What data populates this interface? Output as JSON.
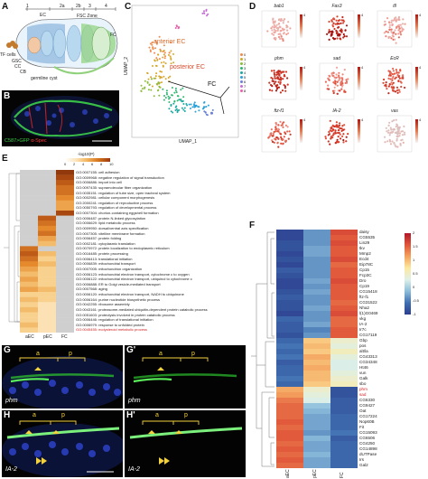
{
  "panels": {
    "A": {
      "label": "A",
      "stage_labels": [
        "1",
        "2a",
        "2b",
        "3",
        "4"
      ],
      "region_labels": {
        "ec": "EC",
        "fsc_zone": "FSC Zone",
        "fc": "FC",
        "tf_cells": "TF cells",
        "gsc": "GSC",
        "cc": "CC",
        "cb": "CB",
        "germline_cyst": "germline cyst"
      },
      "colors": {
        "tf": "#c47a2c",
        "ec": "#6fa4d6",
        "germline": "#b8d8ef",
        "fc": "#8fd17a"
      }
    },
    "B": {
      "label": "B",
      "caption_green": "C587>GFP",
      "caption_red": "α-Spec"
    },
    "C": {
      "label": "C",
      "cluster_labels": {
        "anterior": "anterior EC",
        "posterior": "posterior EC",
        "fc": "FC"
      },
      "legend": [
        "0",
        "1",
        "2",
        "3",
        "4",
        "5",
        "6",
        "7",
        "8"
      ],
      "legend_colors": [
        "#f08a4b",
        "#d4a72c",
        "#8bbd3a",
        "#2fb56f",
        "#1aa8a0",
        "#2aa2d9",
        "#6a7fd8",
        "#c46bd6",
        "#ec5fa8"
      ],
      "axis_x": "UMAP_1",
      "axis_y": "UMAP_2"
    },
    "D": {
      "label": "D",
      "genes": [
        "bab1",
        "Fas3",
        "tll",
        "phm",
        "sad",
        "EcR",
        "ftz-f1",
        "IA-2",
        "vas"
      ],
      "axis_x": "UMAP_1",
      "axis_y": "UMAP_2",
      "scale_max_label": "4"
    },
    "E": {
      "label": "E",
      "colorbar_label": "-log10(P)",
      "colorbar_ticks": [
        "0",
        "2",
        "4",
        "6",
        "8",
        "10"
      ],
      "columns": [
        "aEC",
        "pEC",
        "FC"
      ],
      "terms": [
        "GO:0007155: cell adhesion",
        "GO:0009968: negative regulation of signal transduction",
        "GO:0006886: import into cell",
        "GO:0097435: supramolecular fiber organization",
        "GO:0035151: regulation of tube size, open tracheal system",
        "GO:0002981: cellular component morphogenesis",
        "GO:2000241: regulation of reproductive process",
        "GO:0050793: regulation of developmental process",
        "GO:0007304: chorion-containing eggshell formation",
        "GO:0006487: protein N-linked glycosylation",
        "GO:0006629: lipid metabolic process",
        "GO:0009950: dorsal/ventral axis specification",
        "GO:0007305: vitelline membrane formation",
        "GO:0006457: protein folding",
        "GO:0002181: cytoplasmic translation",
        "GO:0070972: protein localization to endoplasmic reticulum",
        "GO:0016485: protein processing",
        "GO:0006413: translational initiation",
        "GO:0006839: mitochondrial transport",
        "GO:0007005: mitochondrion organization",
        "GO:0006123: mitochondrial electron transport, cytochrome c to oxygen",
        "GO:0006122: mitochondrial electron transport, ubiquinol to cytochrome c",
        "GO:0006888: ER to Golgi vesicle-mediated transport",
        "GO:0007568: aging",
        "GO:0006120: mitochondrial electron transport, NADH to ubiquinone",
        "GO:0006164: purine nucleotide biosynthetic process",
        "GO:0042255: ribosome assembly",
        "GO:0043161: proteasome-mediated ubiquitin-dependent protein catabolic process",
        "GO:0051603: proteolysis involved in protein catabolic process",
        "GO:0006446: regulation of translational initiation",
        "GO:0006979: response to unfolded protein",
        "GO:0045455: ecdysteroid metabolic process"
      ],
      "matrix": [
        [
          0,
          0,
          9
        ],
        [
          0,
          0,
          8
        ],
        [
          0,
          0,
          7
        ],
        [
          0,
          0,
          6
        ],
        [
          0,
          0,
          6
        ],
        [
          0,
          0,
          5
        ],
        [
          0,
          0,
          4
        ],
        [
          0,
          0,
          4
        ],
        [
          0,
          0,
          8
        ],
        [
          0,
          7,
          0
        ],
        [
          0,
          6,
          0
        ],
        [
          0,
          5,
          0
        ],
        [
          0,
          6,
          0
        ],
        [
          0,
          4,
          0
        ],
        [
          0,
          3,
          0
        ],
        [
          6,
          0,
          0
        ],
        [
          7,
          3,
          0
        ],
        [
          6,
          2,
          0
        ],
        [
          5,
          3,
          0
        ],
        [
          4,
          2,
          0
        ],
        [
          3,
          2,
          0
        ],
        [
          4,
          2,
          0
        ],
        [
          3,
          2,
          0
        ],
        [
          4,
          3,
          0
        ],
        [
          2,
          2,
          0
        ],
        [
          3,
          2,
          0
        ],
        [
          2,
          1,
          0
        ],
        [
          3,
          1,
          0
        ],
        [
          2,
          1,
          0
        ],
        [
          2,
          1,
          0
        ],
        [
          3,
          1,
          0
        ],
        [
          2,
          1,
          0
        ]
      ],
      "highlight_color": "#d42020"
    },
    "F": {
      "label": "F",
      "columns": [
        "aEC",
        "pEC",
        "FC"
      ],
      "scale_ticks": [
        "2",
        "1.5",
        "1",
        "0.5",
        "0",
        "-0.5",
        "-1"
      ],
      "genes": [
        "daisy",
        "CG5535",
        "Lin29",
        "tkv",
        "Mmp2",
        "Ecd4",
        "Eip78C",
        "Cp15",
        "Fcp3C",
        "Dro",
        "Cp19",
        "CG15418",
        "ftz-f1",
        "CG31522",
        "Nha2",
        "l(1)G0469",
        "vkg",
        "IA-2",
        "Ir7c",
        "CG17119",
        "Gbp",
        "pos",
        "alt/la",
        "CG43313",
        "CG34348",
        "Ht46",
        "vun",
        "Galk",
        "sbo",
        "phm",
        "sad",
        "CG6330",
        "CG9427",
        "Oat",
        "CG17224",
        "Nop60B",
        "Fit",
        "CG15093",
        "CG6506",
        "CG4250",
        "CG14898",
        "dUTPase",
        "Irs",
        "Gal2"
      ],
      "red_genes": [
        "phm",
        "sad"
      ],
      "values": [
        [
          -1.2,
          -0.6,
          1.6
        ],
        [
          -1.2,
          -0.6,
          1.5
        ],
        [
          -1.1,
          -0.6,
          1.6
        ],
        [
          -1.1,
          -0.5,
          1.5
        ],
        [
          -1.2,
          -0.5,
          1.5
        ],
        [
          -1.1,
          -0.6,
          1.6
        ],
        [
          -1.2,
          -0.6,
          1.4
        ],
        [
          -1.0,
          -0.6,
          1.5
        ],
        [
          -1.1,
          -0.6,
          1.5
        ],
        [
          -1.2,
          -0.5,
          1.6
        ],
        [
          -1.2,
          -0.6,
          1.5
        ],
        [
          -1.1,
          -0.5,
          1.5
        ],
        [
          -1.0,
          -0.6,
          1.5
        ],
        [
          -1.1,
          -0.6,
          1.4
        ],
        [
          -1.1,
          -0.5,
          1.5
        ],
        [
          -1.2,
          -0.6,
          1.6
        ],
        [
          -0.9,
          -0.6,
          1.4
        ],
        [
          -1.0,
          -0.5,
          1.4
        ],
        [
          -1.0,
          -0.7,
          1.5
        ],
        [
          -1.1,
          -0.6,
          1.5
        ],
        [
          -0.9,
          0.8,
          0.3
        ],
        [
          -0.8,
          0.9,
          0.2
        ],
        [
          -0.9,
          0.8,
          0.4
        ],
        [
          -0.8,
          1.0,
          0.2
        ],
        [
          -1.0,
          0.9,
          0.1
        ],
        [
          -0.9,
          1.0,
          0.1
        ],
        [
          -0.9,
          0.9,
          0.2
        ],
        [
          -0.8,
          0.9,
          0.3
        ],
        [
          -0.9,
          0.8,
          0.4
        ],
        [
          1.0,
          0.3,
          -1.1
        ],
        [
          1.1,
          0.2,
          -1.1
        ],
        [
          1.3,
          0.1,
          -1.0
        ],
        [
          1.4,
          -0.3,
          -1.0
        ],
        [
          1.4,
          -0.4,
          -1.0
        ],
        [
          1.4,
          -0.5,
          -0.9
        ],
        [
          1.5,
          -0.5,
          -0.9
        ],
        [
          1.4,
          -0.5,
          -0.9
        ],
        [
          1.5,
          -0.6,
          -0.8
        ],
        [
          1.5,
          -0.4,
          -1.0
        ],
        [
          1.4,
          -0.5,
          -0.9
        ],
        [
          1.5,
          -0.5,
          -0.9
        ],
        [
          1.4,
          -0.4,
          -0.9
        ],
        [
          1.5,
          -0.5,
          -0.9
        ],
        [
          1.4,
          -0.5,
          -0.9
        ]
      ]
    },
    "G": {
      "label": "G",
      "gene": "phm",
      "a_label": "a",
      "p_label": "p"
    },
    "G2": {
      "label": "G'",
      "gene": "phm",
      "a_label": "a",
      "p_label": "p"
    },
    "H": {
      "label": "H",
      "gene": "IA-2",
      "a_label": "a",
      "p_label": "p"
    },
    "H2": {
      "label": "H'",
      "gene": "IA-2",
      "a_label": "a",
      "p_label": "p"
    }
  }
}
